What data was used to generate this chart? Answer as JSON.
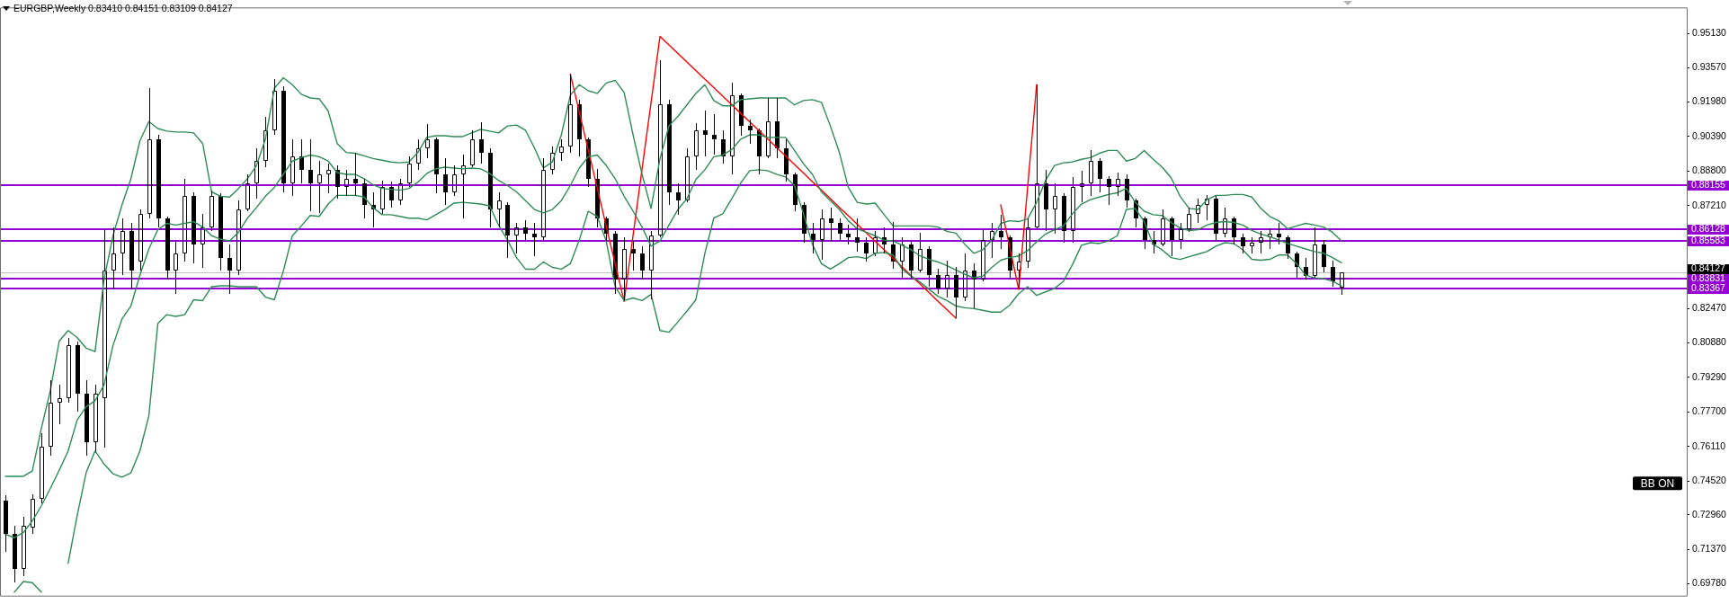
{
  "chart_data": {
    "type": "candlestick",
    "title": "EURGBP,Weekly 0.83410 0.84151 0.83109 0.84127",
    "color": "#000000",
    "marker": "none",
    "tick_labels": "y",
    "categories": [
      null,
      null,
      null,
      null,
      null,
      null,
      null,
      null,
      null,
      null,
      null,
      null,
      null,
      null,
      null,
      null,
      null,
      null,
      null,
      null,
      null,
      null,
      null,
      null,
      null,
      null,
      null,
      null,
      null,
      null,
      null,
      null,
      null,
      null,
      null,
      null,
      null,
      null,
      null,
      null,
      null,
      null,
      null,
      null,
      null,
      null,
      null,
      null,
      null,
      null,
      null,
      null,
      null,
      null,
      null,
      null,
      null,
      null,
      null,
      null,
      null,
      null,
      null,
      null,
      null,
      null,
      null,
      null,
      null,
      null,
      null,
      null,
      null,
      null,
      null,
      null,
      null,
      null,
      null,
      null,
      null,
      null,
      null,
      null,
      null,
      null,
      null,
      null,
      null,
      null,
      null,
      null,
      null,
      null,
      null,
      null,
      null,
      null,
      null,
      null,
      null,
      null,
      null,
      null,
      null,
      null,
      null,
      null,
      null,
      null,
      null,
      null,
      null,
      null,
      null,
      null,
      null,
      null,
      null,
      null,
      null,
      null,
      null,
      null,
      null,
      null,
      null,
      null,
      null,
      null,
      null,
      null,
      null,
      null,
      null,
      null,
      null,
      null,
      null,
      null,
      null,
      null,
      null,
      null,
      null,
      null,
      null,
      null,
      null,
      null,
      null,
      null,
      null,
      null,
      null,
      null,
      null,
      null,
      null,
      null,
      null,
      null,
      null,
      null,
      null,
      null,
      null,
      null,
      null,
      null,
      null,
      null,
      null,
      null,
      null,
      null,
      null,
      null,
      null,
      null,
      null,
      null,
      null,
      null,
      null,
      null,
      null,
      null
    ],
    "ohlc": [
      [
        0.736,
        0.7384,
        0.7125,
        0.7206
      ],
      [
        0.7206,
        0.7246,
        0.6983,
        0.7044
      ],
      [
        0.7044,
        0.7287,
        0.7012,
        0.7246
      ],
      [
        0.7238,
        0.7388,
        0.7206,
        0.7368
      ],
      [
        0.7368,
        0.7671,
        0.7348,
        0.7611
      ],
      [
        0.7611,
        0.7914,
        0.757,
        0.7813
      ],
      [
        0.7813,
        0.7894,
        0.7712,
        0.7833
      ],
      [
        0.7833,
        0.8109,
        0.7813,
        0.8076
      ],
      [
        0.8076,
        0.8096,
        0.7773,
        0.7854
      ],
      [
        0.7854,
        0.7914,
        0.757,
        0.7631
      ],
      [
        0.7631,
        0.7894,
        0.759,
        0.7854
      ],
      [
        0.7833,
        0.861,
        0.7607,
        0.842
      ],
      [
        0.842,
        0.8622,
        0.8339,
        0.8501
      ],
      [
        0.8501,
        0.8663,
        0.84,
        0.8602
      ],
      [
        0.8602,
        0.8643,
        0.8339,
        0.842
      ],
      [
        0.8461,
        0.8703,
        0.842,
        0.8683
      ],
      [
        0.8683,
        0.9262,
        0.8663,
        0.9027
      ],
      [
        0.9027,
        0.9047,
        0.8622,
        0.8663
      ],
      [
        0.8663,
        0.8671,
        0.838,
        0.842
      ],
      [
        0.842,
        0.8562,
        0.8315,
        0.8501
      ],
      [
        0.8501,
        0.8845,
        0.8461,
        0.8764
      ],
      [
        0.8764,
        0.8784,
        0.8453,
        0.8542
      ],
      [
        0.8542,
        0.8683,
        0.8436,
        0.8622
      ],
      [
        0.8622,
        0.8792,
        0.8602,
        0.8764
      ],
      [
        0.8764,
        0.8776,
        0.842,
        0.8481
      ],
      [
        0.8481,
        0.8542,
        0.8315,
        0.842
      ],
      [
        0.842,
        0.8744,
        0.84,
        0.8703
      ],
      [
        0.8703,
        0.8865,
        0.8695,
        0.8825
      ],
      [
        0.8825,
        0.8987,
        0.8752,
        0.8926
      ],
      [
        0.8926,
        0.9128,
        0.8898,
        0.9068
      ],
      [
        0.9068,
        0.9306,
        0.9047,
        0.925
      ],
      [
        0.925,
        0.927,
        0.8784,
        0.8825
      ],
      [
        0.8825,
        0.9027,
        0.8764,
        0.8946
      ],
      [
        0.8946,
        0.9027,
        0.8825,
        0.8886
      ],
      [
        0.8886,
        0.9027,
        0.8695,
        0.8825
      ],
      [
        0.8825,
        0.8926,
        0.8687,
        0.8865
      ],
      [
        0.8865,
        0.8914,
        0.8776,
        0.8886
      ],
      [
        0.8886,
        0.8906,
        0.8752,
        0.8805
      ],
      [
        0.8805,
        0.8886,
        0.8764,
        0.8845
      ],
      [
        0.8845,
        0.8966,
        0.8764,
        0.8825
      ],
      [
        0.8825,
        0.8845,
        0.8663,
        0.8724
      ],
      [
        0.8724,
        0.8784,
        0.8622,
        0.8703
      ],
      [
        0.8703,
        0.8837,
        0.8683,
        0.8805
      ],
      [
        0.8805,
        0.8833,
        0.8712,
        0.8744
      ],
      [
        0.8744,
        0.8845,
        0.8724,
        0.8825
      ],
      [
        0.8825,
        0.8946,
        0.8805,
        0.8914
      ],
      [
        0.8914,
        0.9027,
        0.8886,
        0.8987
      ],
      [
        0.8987,
        0.9096,
        0.8938,
        0.9027
      ],
      [
        0.9027,
        0.9035,
        0.8776,
        0.8865
      ],
      [
        0.8865,
        0.8938,
        0.8724,
        0.8784
      ],
      [
        0.8784,
        0.8906,
        0.8764,
        0.8865
      ],
      [
        0.8865,
        0.8954,
        0.8663,
        0.8906
      ],
      [
        0.8906,
        0.9068,
        0.8898,
        0.9027
      ],
      [
        0.9027,
        0.9104,
        0.8914,
        0.8966
      ],
      [
        0.8966,
        0.8987,
        0.8622,
        0.8703
      ],
      [
        0.8703,
        0.8784,
        0.8622,
        0.8744
      ],
      [
        0.8724,
        0.8736,
        0.8481,
        0.8582
      ],
      [
        0.8582,
        0.8643,
        0.8501,
        0.8622
      ],
      [
        0.8622,
        0.8655,
        0.8562,
        0.859
      ],
      [
        0.859,
        0.8643,
        0.8489,
        0.8574
      ],
      [
        0.8574,
        0.8938,
        0.8562,
        0.8886
      ],
      [
        0.8886,
        0.8995,
        0.8865,
        0.8966
      ],
      [
        0.8966,
        0.9027,
        0.8926,
        0.8995
      ],
      [
        0.8995,
        0.9323,
        0.8966,
        0.9189
      ],
      [
        0.9189,
        0.9209,
        0.8946,
        0.9027
      ],
      [
        0.9027,
        0.9035,
        0.8805,
        0.8845
      ],
      [
        0.8845,
        0.889,
        0.8622,
        0.8663
      ],
      [
        0.8663,
        0.8671,
        0.8558,
        0.859
      ],
      [
        0.859,
        0.8602,
        0.8315,
        0.838
      ],
      [
        0.838,
        0.8574,
        0.8283,
        0.8521
      ],
      [
        0.8521,
        0.8558,
        0.842,
        0.8501
      ],
      [
        0.8501,
        0.8534,
        0.838,
        0.842
      ],
      [
        0.842,
        0.8602,
        0.8291,
        0.8582
      ],
      [
        0.8582,
        0.9391,
        0.8574,
        0.9189
      ],
      [
        0.9189,
        0.9209,
        0.8724,
        0.8784
      ],
      [
        0.8784,
        0.8825,
        0.8679,
        0.8744
      ],
      [
        0.8744,
        0.8987,
        0.8736,
        0.8946
      ],
      [
        0.8946,
        0.91,
        0.8886,
        0.9068
      ],
      [
        0.9068,
        0.9157,
        0.8946,
        0.9047
      ],
      [
        0.9047,
        0.9141,
        0.8954,
        0.9027
      ],
      [
        0.9027,
        0.9068,
        0.8914,
        0.8946
      ],
      [
        0.8946,
        0.9286,
        0.8865,
        0.923
      ],
      [
        0.923,
        0.9238,
        0.9043,
        0.9088
      ],
      [
        0.9088,
        0.9116,
        0.9007,
        0.9068
      ],
      [
        0.9068,
        0.9076,
        0.8865,
        0.8946
      ],
      [
        0.8946,
        0.9217,
        0.8938,
        0.9108
      ],
      [
        0.9108,
        0.9217,
        0.8938,
        0.8987
      ],
      [
        0.8987,
        0.9027,
        0.8833,
        0.8865
      ],
      [
        0.8865,
        0.8873,
        0.8695,
        0.8724
      ],
      [
        0.8724,
        0.8736,
        0.855,
        0.859
      ],
      [
        0.859,
        0.8643,
        0.8501,
        0.8562
      ],
      [
        0.8562,
        0.8703,
        0.8473,
        0.8663
      ],
      [
        0.8663,
        0.8712,
        0.8558,
        0.8643
      ],
      [
        0.8643,
        0.8663,
        0.8558,
        0.859
      ],
      [
        0.859,
        0.8631,
        0.8542,
        0.8574
      ],
      [
        0.8574,
        0.8663,
        0.8509,
        0.855
      ],
      [
        0.855,
        0.8574,
        0.8461,
        0.8501
      ],
      [
        0.8501,
        0.8602,
        0.8489,
        0.8574
      ],
      [
        0.8574,
        0.8622,
        0.8501,
        0.8542
      ],
      [
        0.8542,
        0.8647,
        0.8428,
        0.8461
      ],
      [
        0.8461,
        0.8574,
        0.8388,
        0.8542
      ],
      [
        0.8542,
        0.8562,
        0.838,
        0.842
      ],
      [
        0.842,
        0.8594,
        0.8412,
        0.8521
      ],
      [
        0.8521,
        0.8534,
        0.8347,
        0.84
      ],
      [
        0.84,
        0.8428,
        0.8315,
        0.8339
      ],
      [
        0.8339,
        0.8469,
        0.8299,
        0.84
      ],
      [
        0.84,
        0.844,
        0.8202,
        0.8299
      ],
      [
        0.8299,
        0.8501,
        0.8279,
        0.842
      ],
      [
        0.842,
        0.8453,
        0.8246,
        0.838
      ],
      [
        0.838,
        0.8614,
        0.8372,
        0.8562
      ],
      [
        0.8562,
        0.8643,
        0.8481,
        0.8602
      ],
      [
        0.8602,
        0.8679,
        0.8521,
        0.8574
      ],
      [
        0.8574,
        0.8582,
        0.838,
        0.842
      ],
      [
        0.842,
        0.8501,
        0.8335,
        0.8461
      ],
      [
        0.8461,
        0.8663,
        0.8436,
        0.8622
      ],
      [
        0.8622,
        0.9278,
        0.8614,
        0.8825
      ],
      [
        0.8825,
        0.8886,
        0.8602,
        0.8703
      ],
      [
        0.8703,
        0.8825,
        0.859,
        0.8764
      ],
      [
        0.8764,
        0.8776,
        0.855,
        0.8602
      ],
      [
        0.8602,
        0.8853,
        0.855,
        0.8805
      ],
      [
        0.8805,
        0.8882,
        0.8736,
        0.8825
      ],
      [
        0.8825,
        0.8975,
        0.8764,
        0.8926
      ],
      [
        0.8926,
        0.8938,
        0.8784,
        0.8845
      ],
      [
        0.8845,
        0.8857,
        0.8724,
        0.8805
      ],
      [
        0.8805,
        0.8873,
        0.8764,
        0.8845
      ],
      [
        0.8845,
        0.8865,
        0.8712,
        0.8744
      ],
      [
        0.8744,
        0.8752,
        0.8622,
        0.8663
      ],
      [
        0.8663,
        0.8671,
        0.8521,
        0.8562
      ],
      [
        0.8562,
        0.8602,
        0.8501,
        0.8542
      ],
      [
        0.8542,
        0.8703,
        0.8534,
        0.8663
      ],
      [
        0.8663,
        0.8671,
        0.8489,
        0.8562
      ],
      [
        0.8562,
        0.8643,
        0.8521,
        0.8614
      ],
      [
        0.8614,
        0.8712,
        0.8598,
        0.8683
      ],
      [
        0.8683,
        0.8752,
        0.8643,
        0.8724
      ],
      [
        0.8724,
        0.8768,
        0.8655,
        0.8752
      ],
      [
        0.8752,
        0.8764,
        0.8558,
        0.859
      ],
      [
        0.859,
        0.8712,
        0.8574,
        0.8663
      ],
      [
        0.8663,
        0.8671,
        0.8542,
        0.8574
      ],
      [
        0.8574,
        0.859,
        0.8501,
        0.8534
      ],
      [
        0.8534,
        0.8574,
        0.8501,
        0.855
      ],
      [
        0.855,
        0.8602,
        0.8501,
        0.8574
      ],
      [
        0.8574,
        0.8614,
        0.8521,
        0.859
      ],
      [
        0.859,
        0.8643,
        0.8542,
        0.8574
      ],
      [
        0.8574,
        0.8582,
        0.8477,
        0.8501
      ],
      [
        0.8501,
        0.8509,
        0.8388,
        0.844
      ],
      [
        0.844,
        0.8481,
        0.838,
        0.8396
      ],
      [
        0.8396,
        0.8619,
        0.8388,
        0.8542
      ],
      [
        0.8542,
        0.8562,
        0.8412,
        0.844
      ],
      [
        0.844,
        0.8469,
        0.8347,
        0.8372
      ],
      [
        0.8341,
        0.84151,
        0.83109,
        0.84127
      ],
      null,
      null,
      null,
      null,
      null,
      null,
      null,
      null,
      null,
      null,
      null,
      null,
      null,
      null,
      null,
      null,
      null,
      null,
      null,
      null,
      null,
      null,
      null,
      null,
      null,
      null,
      null,
      null,
      null,
      null,
      null,
      null,
      null,
      null,
      null,
      null,
      null,
      null
    ],
    "series": [
      {
        "type": "line",
        "color": "#2e8b57",
        "values": [
          0.7473,
          0.7473,
          0.7473,
          0.7497,
          0.7692,
          0.7866,
          0.8096,
          0.8145,
          0.8113,
          0.8064,
          0.8048,
          0.838,
          0.8582,
          0.8724,
          0.8845,
          0.9019,
          0.9108,
          0.9076,
          0.9064,
          0.906,
          0.906,
          0.9056,
          0.9007,
          0.8784,
          0.8764,
          0.876,
          0.88,
          0.8845,
          0.8906,
          0.9027,
          0.9262,
          0.931,
          0.9278,
          0.9234,
          0.9217,
          0.9213,
          0.9157,
          0.9007,
          0.8966,
          0.8962,
          0.895,
          0.8938,
          0.893,
          0.8922,
          0.8918,
          0.8922,
          0.8966,
          0.9035,
          0.9043,
          0.9043,
          0.9039,
          0.9039,
          0.9056,
          0.9072,
          0.9064,
          0.9056,
          0.9088,
          0.9092,
          0.9068,
          0.8987,
          0.8894,
          0.8922,
          0.9047,
          0.923,
          0.9278,
          0.925,
          0.9238,
          0.9286,
          0.9298,
          0.9242,
          0.9047,
          0.8865,
          0.8708,
          0.8938,
          0.9088,
          0.9132,
          0.9185,
          0.9238,
          0.9278,
          0.9205,
          0.9181,
          0.9181,
          0.9209,
          0.9213,
          0.9217,
          0.9217,
          0.9217,
          0.9217,
          0.9185,
          0.9205,
          0.9209,
          0.9197,
          0.9088,
          0.8966,
          0.8805,
          0.8736,
          0.8728,
          0.8732,
          0.8679,
          0.8627,
          0.8627,
          0.8627,
          0.8627,
          0.8627,
          0.8622,
          0.8602,
          0.8594,
          0.8542,
          0.8501,
          0.8517,
          0.8562,
          0.8639,
          0.8651,
          0.8647,
          0.8659,
          0.8736,
          0.8837,
          0.8906,
          0.8918,
          0.8922,
          0.8934,
          0.8942,
          0.8962,
          0.8975,
          0.8975,
          0.8926,
          0.8938,
          0.8975,
          0.8934,
          0.8898,
          0.8849,
          0.8764,
          0.8708,
          0.8703,
          0.8748,
          0.8768,
          0.8768,
          0.8772,
          0.8772,
          0.876,
          0.8708,
          0.8671,
          0.8651,
          0.8614,
          0.8627,
          0.8639,
          0.8631,
          0.8622,
          0.8598,
          0.8558,
          null,
          null,
          null,
          null,
          null,
          null,
          null,
          null,
          null,
          null,
          null,
          null,
          null,
          null,
          null,
          null,
          null,
          null,
          null,
          null,
          null,
          null,
          null,
          null,
          null,
          null,
          null,
          null,
          null,
          null,
          null,
          null,
          null,
          null,
          null,
          null,
          null,
          null
        ]
      },
      {
        "type": "line",
        "color": "#2e8b57",
        "values": [
          0.7206,
          0.719,
          0.7214,
          0.7267,
          0.7336,
          0.7416,
          0.7501,
          0.759,
          0.7732,
          0.7793,
          0.7821,
          0.7894,
          0.8076,
          0.8198,
          0.8258,
          0.84,
          0.8521,
          0.861,
          0.8639,
          0.8631,
          0.8639,
          0.8647,
          0.8622,
          0.8582,
          0.8566,
          0.8558,
          0.8598,
          0.8663,
          0.8712,
          0.8764,
          0.8805,
          0.8865,
          0.8926,
          0.8942,
          0.8954,
          0.8946,
          0.8926,
          0.8873,
          0.8865,
          0.8865,
          0.8845,
          0.8817,
          0.88,
          0.8796,
          0.8792,
          0.88,
          0.8829,
          0.8869,
          0.889,
          0.8898,
          0.8894,
          0.889,
          0.8894,
          0.889,
          0.8869,
          0.8837,
          0.8813,
          0.8784,
          0.8744,
          0.8703,
          0.8687,
          0.8703,
          0.8744,
          0.8813,
          0.8894,
          0.8946,
          0.8954,
          0.8906,
          0.8845,
          0.8764,
          0.8695,
          0.8622,
          0.8534,
          0.8558,
          0.8631,
          0.8703,
          0.8752,
          0.8841,
          0.8886,
          0.8946,
          0.8954,
          0.8979,
          0.9027,
          0.9047,
          0.9047,
          0.9035,
          0.9035,
          0.9035,
          0.8975,
          0.8914,
          0.8865,
          0.8784,
          0.8744,
          0.8703,
          0.8651,
          0.8614,
          0.8598,
          0.8582,
          0.8562,
          0.8558,
          0.8538,
          0.8517,
          0.8489,
          0.8473,
          0.8461,
          0.8444,
          0.8424,
          0.8404,
          0.8388,
          0.8396,
          0.8436,
          0.8469,
          0.8481,
          0.8489,
          0.8513,
          0.8554,
          0.859,
          0.861,
          0.8627,
          0.8683,
          0.8728,
          0.8748,
          0.876,
          0.8772,
          0.878,
          0.88,
          0.8736,
          0.8695,
          0.8679,
          0.8675,
          0.8643,
          0.8618,
          0.8606,
          0.861,
          0.8631,
          0.8643,
          0.8647,
          0.8643,
          0.8631,
          0.8606,
          0.859,
          0.8578,
          0.8562,
          0.8546,
          0.8534,
          0.8521,
          0.8509,
          0.8501,
          0.8481,
          0.8457,
          null,
          null,
          null,
          null,
          null,
          null,
          null,
          null,
          null,
          null,
          null,
          null,
          null,
          null,
          null,
          null,
          null,
          null,
          null,
          null,
          null,
          null,
          null,
          null,
          null,
          null,
          null,
          null,
          null,
          null,
          null,
          null,
          null,
          null,
          null,
          null,
          null,
          null
        ]
      },
      {
        "type": "line",
        "color": "#2e8b57",
        "values": [
          null,
          0.6939,
          0.6988,
          0.6983,
          0.6939,
          null,
          null,
          0.7072,
          0.7291,
          0.7489,
          0.759,
          0.753,
          0.7485,
          0.7469,
          0.7489,
          0.759,
          0.7752,
          0.8177,
          0.8218,
          0.821,
          0.8218,
          0.8287,
          0.8283,
          0.8347,
          0.8351,
          0.8351,
          0.8347,
          0.8347,
          0.8347,
          0.8299,
          0.8287,
          0.842,
          0.8582,
          0.8627,
          0.8675,
          0.8671,
          0.8728,
          0.8768,
          0.8768,
          0.8768,
          0.876,
          0.8712,
          0.8679,
          0.8679,
          0.8671,
          0.8663,
          0.8663,
          0.8655,
          0.8679,
          0.8703,
          0.8732,
          0.8736,
          0.8732,
          0.8728,
          0.872,
          0.8631,
          0.8562,
          0.8481,
          0.8428,
          0.8428,
          0.8461,
          0.8436,
          0.8428,
          0.8453,
          0.8562,
          0.8695,
          0.8671,
          0.8558,
          0.8347,
          0.8283,
          0.8295,
          0.8283,
          0.8311,
          0.8145,
          0.8137,
          0.8185,
          0.8234,
          0.8287,
          0.8501,
          0.8663,
          0.8683,
          0.8752,
          0.8825,
          0.8882,
          0.8886,
          0.8882,
          0.8865,
          0.8853,
          0.8813,
          0.8683,
          0.8542,
          0.8453,
          0.8428,
          0.8453,
          0.8481,
          0.8485,
          0.8477,
          0.8501,
          0.8505,
          0.8493,
          0.8428,
          0.8396,
          0.8368,
          0.8335,
          0.8303,
          0.8283,
          0.8258,
          0.825,
          0.8246,
          0.8238,
          0.823,
          0.823,
          0.8262,
          0.8315,
          0.8347,
          0.8307,
          0.8323,
          0.8339,
          0.8372,
          0.8449,
          0.8538,
          0.855,
          0.8546,
          0.8558,
          0.8582,
          0.8703,
          0.8708,
          0.8647,
          0.8542,
          0.8517,
          0.8481,
          0.8473,
          0.8485,
          0.8497,
          0.8509,
          0.8534,
          0.855,
          0.8546,
          0.8517,
          0.8473,
          0.8469,
          0.8473,
          0.8493,
          0.8493,
          0.8453,
          0.84,
          0.8388,
          0.8384,
          0.8372,
          0.8351,
          null,
          null,
          null,
          null,
          null,
          null,
          null,
          null,
          null,
          null,
          null,
          null,
          null,
          null,
          null,
          null,
          null,
          null,
          null,
          null,
          null,
          null,
          null,
          null,
          null,
          null,
          null,
          null,
          null,
          null,
          null,
          null,
          null,
          null,
          null,
          null,
          null,
          null
        ]
      },
      {
        "type": "line",
        "color": "#ff0000",
        "values": [
          null,
          null,
          null,
          null,
          null,
          null,
          null,
          null,
          null,
          null,
          null,
          null,
          null,
          null,
          null,
          null,
          null,
          null,
          null,
          null,
          null,
          null,
          null,
          null,
          null,
          null,
          null,
          null,
          null,
          null,
          null,
          null,
          null,
          null,
          null,
          null,
          null,
          null,
          null,
          null,
          null,
          null,
          null,
          null,
          null,
          null,
          null,
          null,
          null,
          null,
          null,
          null,
          null,
          null,
          null,
          null,
          null,
          null,
          null,
          null,
          null,
          null,
          null,
          0.9327,
          0.9152,
          0.8977,
          0.8803,
          0.8626,
          0.8453,
          0.8279,
          0.8584,
          0.889,
          0.9195,
          0.9501,
          0.9461,
          0.9422,
          0.9383,
          0.9343,
          0.9304,
          0.9265,
          0.9225,
          0.9186,
          0.9146,
          0.9107,
          0.9068,
          0.9028,
          0.8989,
          0.895,
          0.891,
          0.8871,
          0.8831,
          0.8792,
          0.8753,
          0.8713,
          0.8674,
          0.8635,
          0.8595,
          0.8556,
          0.8517,
          0.8477,
          0.8438,
          0.8398,
          0.8359,
          0.832,
          0.828,
          0.8241,
          0.8202,
          null,
          null,
          null,
          null,
          null,
          null,
          null,
          null,
          null,
          null,
          null,
          null,
          null,
          null,
          null,
          null,
          null,
          null,
          null,
          null,
          null,
          null,
          null,
          null,
          null,
          null,
          null,
          null,
          null,
          null,
          null,
          null,
          null,
          null,
          null,
          null,
          null,
          null,
          null,
          null,
          null,
          null,
          null,
          null,
          null,
          null,
          null,
          null,
          null,
          null,
          null,
          null,
          null,
          null,
          null,
          null,
          null,
          null,
          null,
          null,
          null,
          null,
          null,
          null,
          null,
          null,
          null,
          null,
          null,
          null,
          null,
          null,
          null,
          null,
          null,
          null,
          null,
          null,
          null,
          null,
          null
        ]
      },
      {
        "type": "line",
        "color": "#ff0000",
        "values": [
          null,
          null,
          null,
          null,
          null,
          null,
          null,
          null,
          null,
          null,
          null,
          null,
          null,
          null,
          null,
          null,
          null,
          null,
          null,
          null,
          null,
          null,
          null,
          null,
          null,
          null,
          null,
          null,
          null,
          null,
          null,
          null,
          null,
          null,
          null,
          null,
          null,
          null,
          null,
          null,
          null,
          null,
          null,
          null,
          null,
          null,
          null,
          null,
          null,
          null,
          null,
          null,
          null,
          null,
          null,
          null,
          null,
          null,
          null,
          null,
          null,
          null,
          null,
          null,
          null,
          null,
          null,
          null,
          null,
          null,
          null,
          null,
          null,
          null,
          null,
          null,
          null,
          null,
          null,
          null,
          null,
          null,
          null,
          null,
          null,
          null,
          null,
          null,
          null,
          null,
          null,
          null,
          null,
          null,
          null,
          null,
          null,
          null,
          null,
          null,
          null,
          null,
          null,
          null,
          null,
          null,
          null,
          null,
          null,
          null,
          null,
          0.8724,
          0.8529,
          0.8335,
          0.8807,
          0.9278,
          null,
          null,
          null,
          null,
          null,
          null,
          null,
          null,
          null,
          null,
          null,
          null,
          null,
          null,
          null,
          null,
          null,
          null,
          null,
          null,
          null,
          null,
          null,
          null,
          null,
          null,
          null,
          null,
          null,
          null,
          null,
          null,
          null,
          null,
          null,
          null,
          null,
          null,
          null,
          null,
          null,
          null,
          null,
          null,
          null,
          null,
          null,
          null,
          null,
          null,
          null,
          null,
          null,
          null,
          null,
          null,
          null,
          null,
          null,
          null,
          null,
          null,
          null,
          null,
          null,
          null,
          null,
          null,
          null,
          null,
          null,
          null
        ]
      }
    ],
    "ylim": [
      0.6923,
      0.963
    ],
    "yticks": [
      {
        "value": 0.9513,
        "label": "0.95130"
      },
      {
        "value": 0.9357,
        "label": "0.93570"
      },
      {
        "value": 0.9198,
        "label": "0.91980"
      },
      {
        "value": 0.9039,
        "label": "0.90390"
      },
      {
        "value": 0.888,
        "label": "0.88800"
      },
      {
        "value": 0.8721,
        "label": "0.87210"
      },
      {
        "value": 0.8247,
        "label": "0.82470"
      },
      {
        "value": 0.8088,
        "label": "0.80880"
      },
      {
        "value": 0.7929,
        "label": "0.79290"
      },
      {
        "value": 0.777,
        "label": "0.77700"
      },
      {
        "value": 0.7611,
        "label": "0.76110"
      },
      {
        "value": 0.7452,
        "label": "0.74520"
      },
      {
        "value": 0.7296,
        "label": "0.72960"
      },
      {
        "value": 0.7137,
        "label": "0.71370"
      },
      {
        "value": 0.6978,
        "label": "0.69780"
      }
    ],
    "ref_lines": [
      {
        "axis": "y",
        "value": 0.88155,
        "label": "0.88155",
        "color": "#9400d3"
      },
      {
        "axis": "y",
        "value": 0.86128,
        "label": "0.86128",
        "color": "#9400d3"
      },
      {
        "axis": "y",
        "value": 0.85583,
        "label": "0.85583",
        "color": "#9400d3"
      },
      {
        "axis": "y",
        "value": 0.84127,
        "label": "0.84127",
        "color": "#c0c0c0"
      },
      {
        "axis": "y",
        "value": 0.83831,
        "label": "0.83831",
        "color": "#9400d3"
      },
      {
        "axis": "y",
        "value": 0.83367,
        "label": "0.83367",
        "color": "#9400d3"
      }
    ],
    "annotations": [
      "BB ON"
    ]
  }
}
